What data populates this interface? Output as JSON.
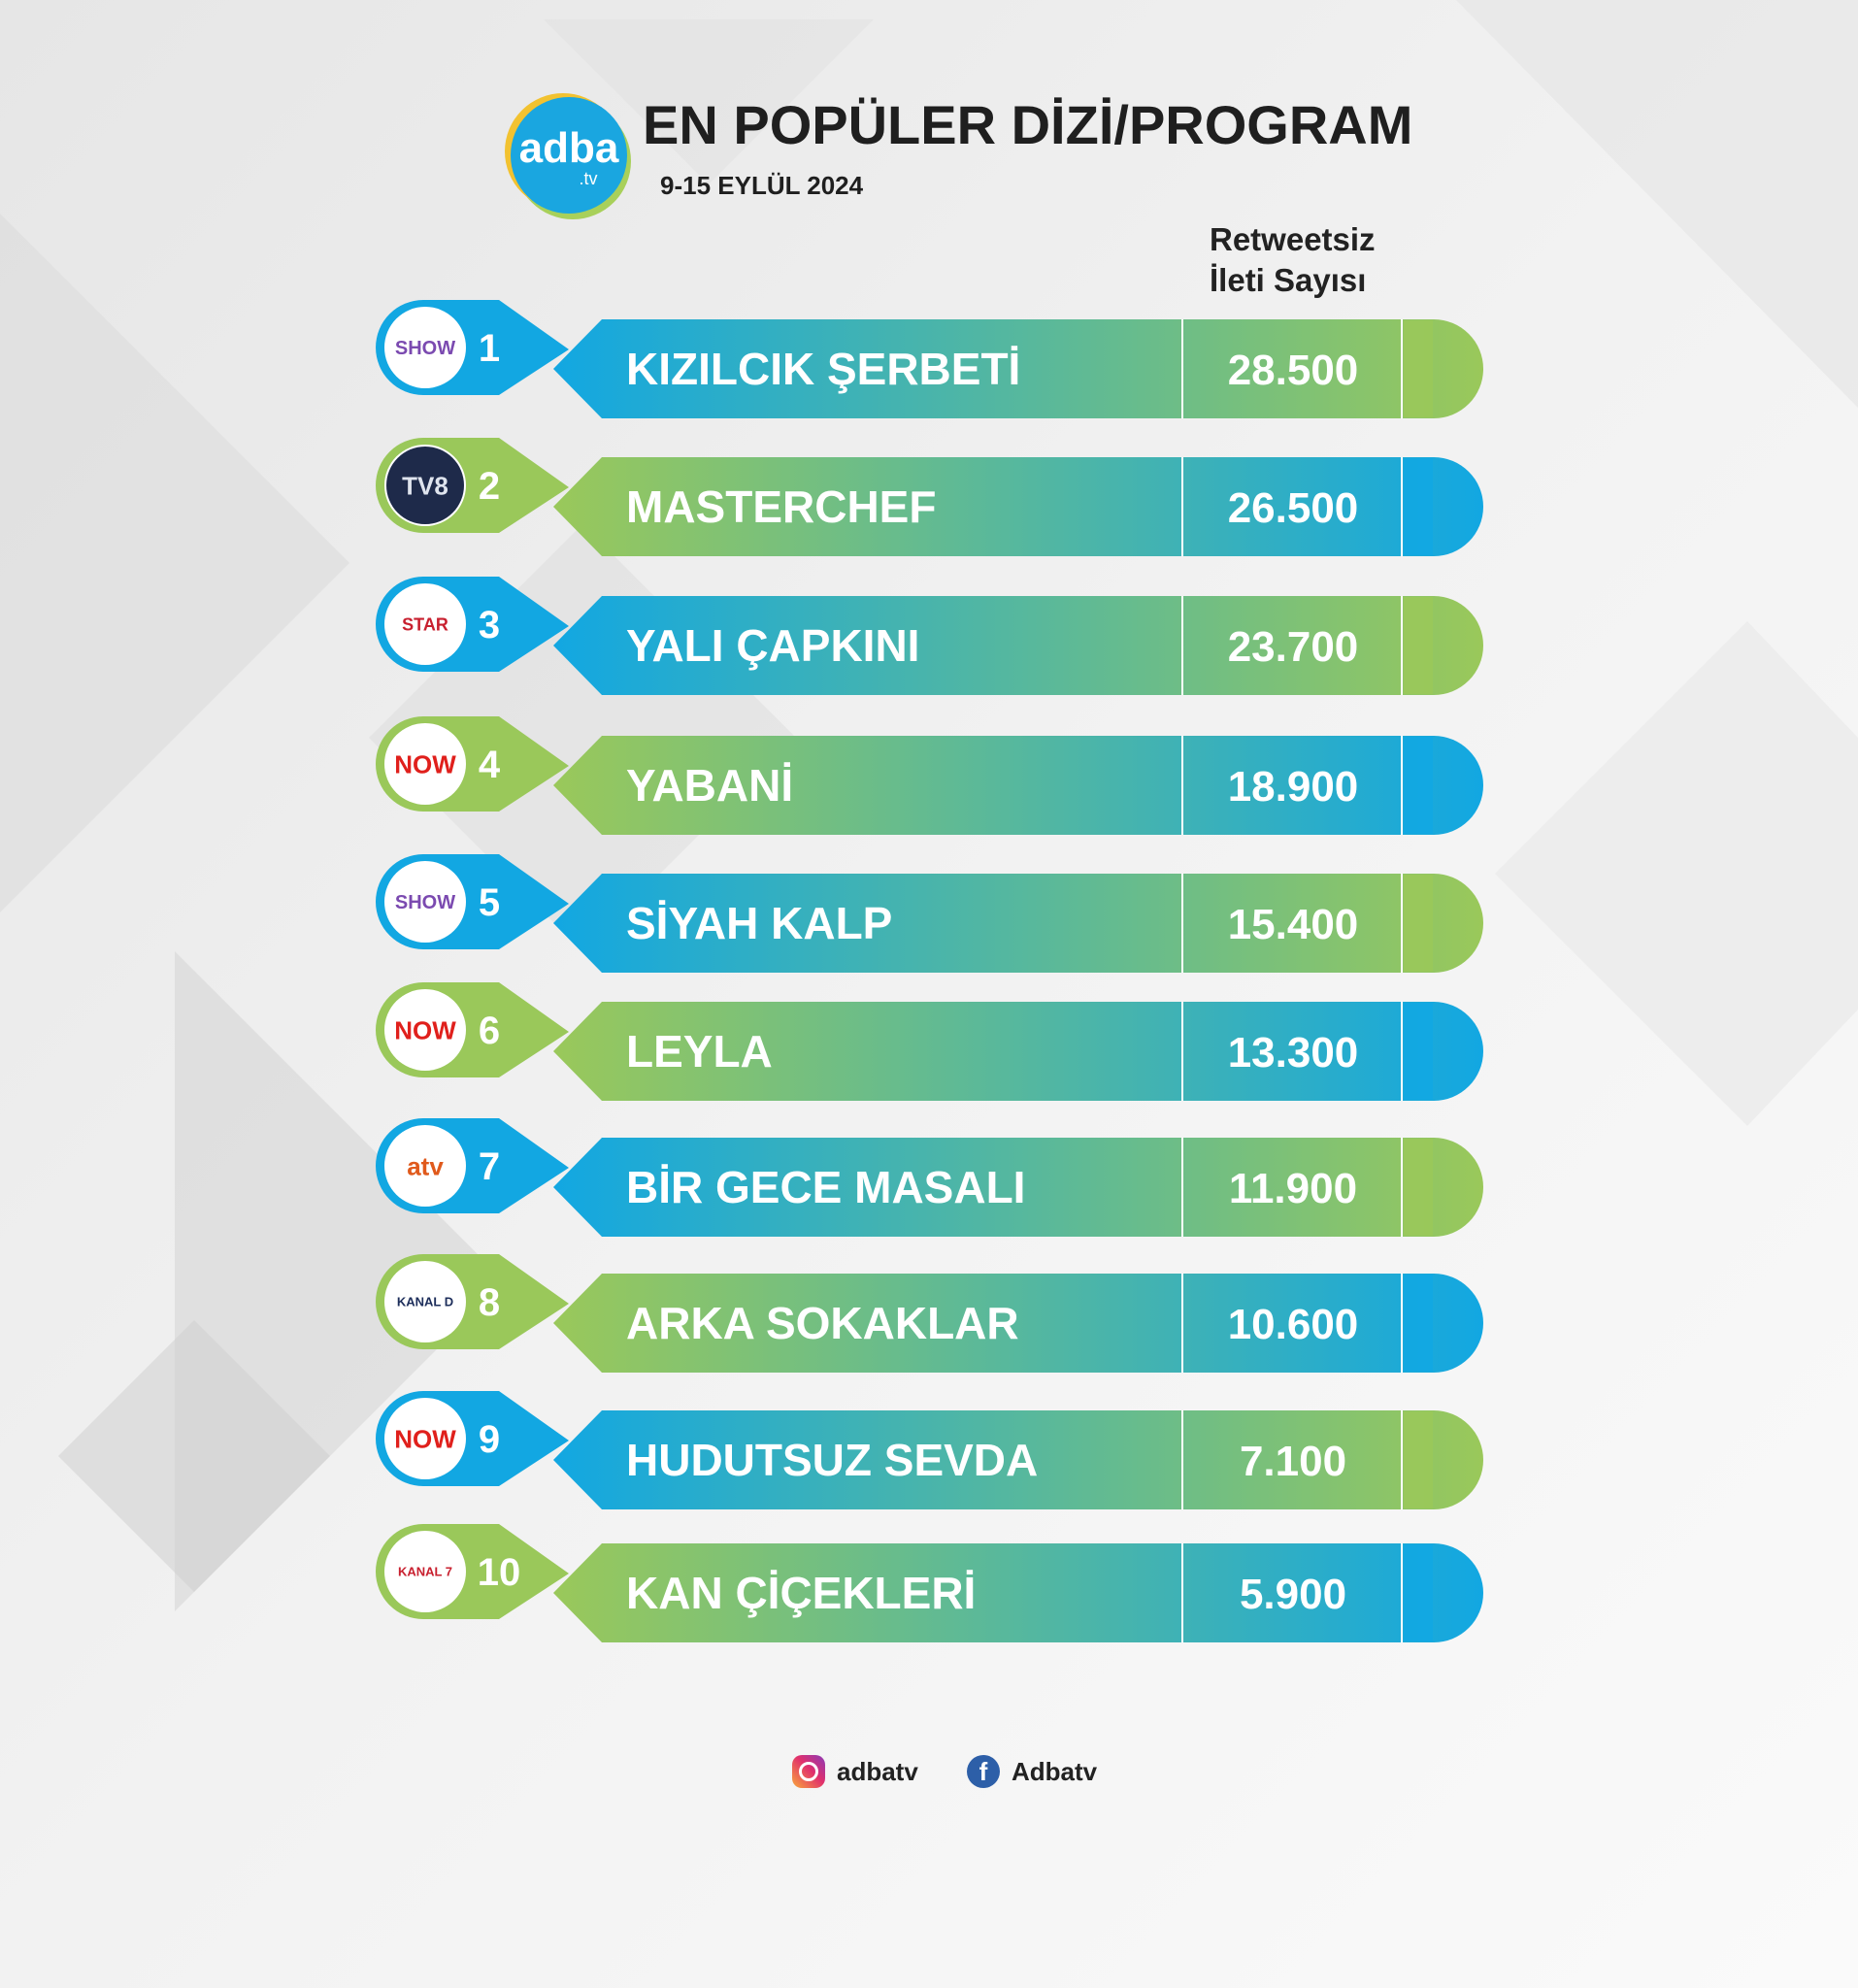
{
  "header": {
    "logo_name": "adba",
    "logo_tld": ".tv",
    "title": "EN POPÜLER DİZİ/PROGRAM",
    "subtitle": "9-15 EYLÜL 2024",
    "column_header_line1": "Retweetsiz",
    "column_header_line2": "İleti Sayısı"
  },
  "colors": {
    "blue": "#12a7e2",
    "green": "#9ac85a",
    "text": "#ffffff"
  },
  "chart_data": {
    "type": "table",
    "rows": [
      {
        "rank": "1",
        "name": "KIZILCIK ŞERBETİ",
        "value": "28.500",
        "channel": "SHOW",
        "channel_icon": "show-tv-icon"
      },
      {
        "rank": "2",
        "name": "MASTERCHEF",
        "value": "26.500",
        "channel": "TV8",
        "channel_icon": "tv8-icon"
      },
      {
        "rank": "3",
        "name": "YALI ÇAPKINI",
        "value": "23.700",
        "channel": "STAR",
        "channel_icon": "star-tv-icon"
      },
      {
        "rank": "4",
        "name": "YABANİ",
        "value": "18.900",
        "channel": "NOW",
        "channel_icon": "now-tv-icon"
      },
      {
        "rank": "5",
        "name": "SİYAH KALP",
        "value": "15.400",
        "channel": "SHOW",
        "channel_icon": "show-tv-icon"
      },
      {
        "rank": "6",
        "name": "LEYLA",
        "value": "13.300",
        "channel": "NOW",
        "channel_icon": "now-tv-icon"
      },
      {
        "rank": "7",
        "name": "BİR GECE MASALI",
        "value": "11.900",
        "channel": "atv",
        "channel_icon": "atv-icon"
      },
      {
        "rank": "8",
        "name": "ARKA SOKAKLAR",
        "value": "10.600",
        "channel": "KANAL D",
        "channel_icon": "kanal-d-icon"
      },
      {
        "rank": "9",
        "name": "HUDUTSUZ SEVDA",
        "value": "7.100",
        "channel": "NOW",
        "channel_icon": "now-tv-icon"
      },
      {
        "rank": "10",
        "name": "KAN ÇİÇEKLERİ",
        "value": "5.900",
        "channel": "KANAL 7",
        "channel_icon": "kanal-7-icon"
      }
    ]
  },
  "footer": {
    "instagram": "adbatv",
    "facebook": "Adbatv"
  }
}
